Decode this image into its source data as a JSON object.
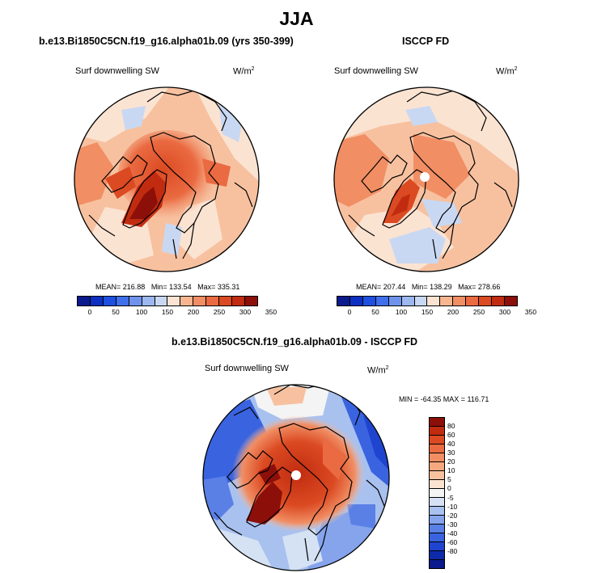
{
  "figure": {
    "title": "JJA"
  },
  "panels": [
    {
      "title": "b.e13.Bi1850C5CN.f19_g16.alpha01b.09 (yrs 350-399)",
      "variable": "Surf downwelling SW",
      "unit_base": "W/m",
      "unit_exp": "2",
      "stats": {
        "mean_label": "MEAN= 216.88",
        "min_label": "Min= 133.54",
        "max_label": "Max= 335.31"
      }
    },
    {
      "title": "ISCCP FD",
      "variable": "Surf downwelling SW",
      "unit_base": "W/m",
      "unit_exp": "2",
      "stats": {
        "mean_label": "MEAN= 207.44",
        "min_label": "Min= 138.29",
        "max_label": "Max= 278.66"
      }
    },
    {
      "title": "b.e13.Bi1850C5CN.f19_g16.alpha01b.09 - ISCCP FD",
      "variable": "Surf downwelling SW",
      "unit_base": "W/m",
      "unit_exp": "2",
      "stats": {
        "minmax_label": "MIN = -64.35  MAX = 116.71"
      }
    }
  ],
  "colorbars": {
    "absolute": {
      "colors": [
        "#0b1a8c",
        "#0d2fc2",
        "#1f4fe0",
        "#3f6fea",
        "#6f93ec",
        "#9db7ef",
        "#c9d8f2",
        "#fbe3d2",
        "#f7b690",
        "#f18e64",
        "#ea6a41",
        "#db4a22",
        "#c12c10",
        "#8c0f0a"
      ],
      "labels": [
        "0",
        "50",
        "100",
        "150",
        "200",
        "250",
        "300",
        "350"
      ]
    },
    "difference": {
      "colors": [
        "#8c0f0a",
        "#c12c10",
        "#db4a22",
        "#ea6a41",
        "#f18e64",
        "#f6a97f",
        "#f7c1a0",
        "#fbe3d2",
        "#f4f4f4",
        "#d5e2f4",
        "#a8c1ef",
        "#85a4ec",
        "#5a80e6",
        "#3a63e0",
        "#1f44cf",
        "#0d2aaa",
        "#0b1a8c"
      ],
      "labels": [
        "80",
        "60",
        "40",
        "30",
        "20",
        "10",
        "5",
        "0",
        "-5",
        "-10",
        "-20",
        "-30",
        "-40",
        "-60",
        "-80"
      ]
    }
  },
  "chart_data": {
    "type": "heatmap",
    "projection": "north polar stereographic",
    "maps": [
      {
        "name": "model",
        "mean": 216.88,
        "min": 133.54,
        "max": 335.31,
        "levels": [
          0,
          25,
          50,
          75,
          100,
          125,
          150,
          175,
          200,
          225,
          250,
          275,
          300,
          325,
          350
        ]
      },
      {
        "name": "observation",
        "mean": 207.44,
        "min": 138.29,
        "max": 278.66,
        "levels": [
          0,
          25,
          50,
          75,
          100,
          125,
          150,
          175,
          200,
          225,
          250,
          275,
          300,
          325,
          350
        ]
      },
      {
        "name": "difference",
        "min": -64.35,
        "max": 116.71,
        "levels": [
          -80,
          -60,
          -40,
          -30,
          -20,
          -10,
          -5,
          0,
          5,
          10,
          20,
          30,
          40,
          60,
          80
        ]
      }
    ]
  }
}
